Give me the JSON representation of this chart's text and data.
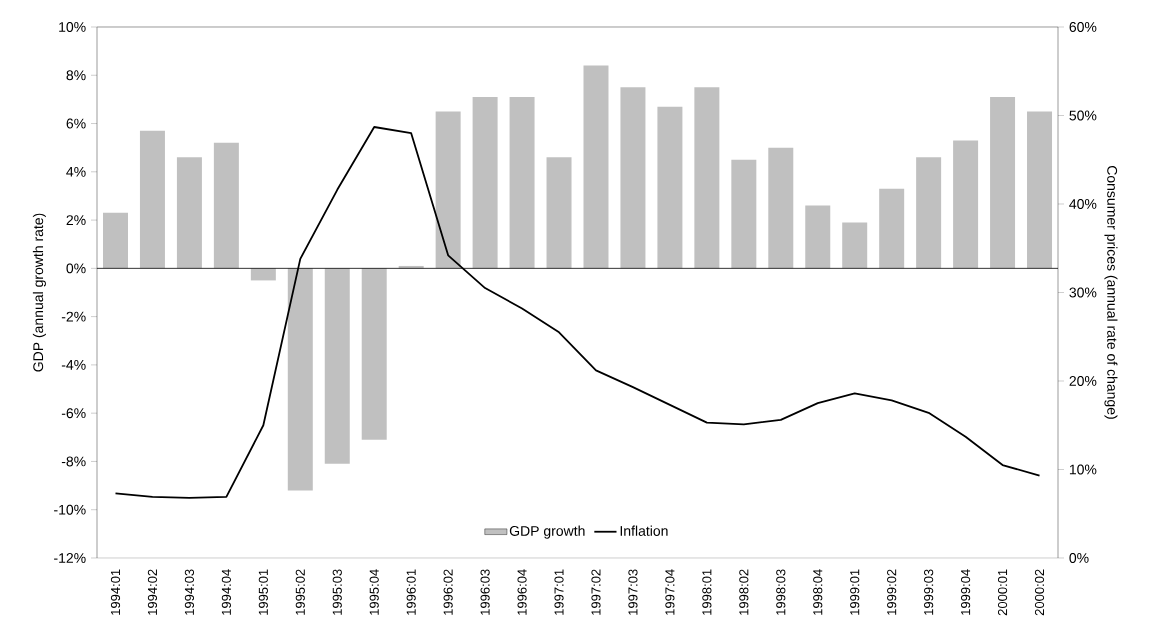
{
  "chart_data": {
    "type": "bar",
    "categories": [
      "1994:01",
      "1994:02",
      "1994:03",
      "1994:04",
      "1995:01",
      "1995:02",
      "1995:03",
      "1995:04",
      "1996:01",
      "1996:02",
      "1996:03",
      "1996:04",
      "1997:01",
      "1997:02",
      "1997:03",
      "1997:04",
      "1998:01",
      "1998:02",
      "1998:03",
      "1998:04",
      "1999:01",
      "1999:02",
      "1999:03",
      "1999:04",
      "2000:01",
      "2000:02"
    ],
    "series": [
      {
        "name": "GDP growth",
        "color": "#c0c0c0",
        "values": [
          2.3,
          5.7,
          4.6,
          5.2,
          -0.5,
          -9.2,
          -8.1,
          -7.1,
          0.1,
          6.5,
          7.1,
          7.1,
          4.6,
          8.4,
          7.5,
          6.7,
          7.5,
          4.5,
          5.0,
          2.6,
          1.9,
          3.3,
          4.6,
          5.3,
          7.1,
          6.5
        ]
      },
      {
        "name": "Inflation",
        "type": "line",
        "axis": "y2",
        "color": "#000000",
        "values": [
          7.3,
          6.9,
          6.8,
          6.9,
          15.0,
          33.8,
          41.6,
          48.7,
          48.0,
          34.2,
          30.5,
          28.2,
          25.5,
          21.2,
          19.3,
          17.3,
          15.3,
          15.1,
          15.6,
          17.5,
          18.6,
          17.8,
          16.4,
          13.7,
          10.5,
          9.3
        ]
      }
    ],
    "ylabel": "GDP (annual growth rate)",
    "y2label": "Consumer prices (annual rate of change)",
    "ylim": [
      -12,
      10
    ],
    "yticks": [
      {
        "value": -12,
        "label": "-12%"
      },
      {
        "value": -10,
        "label": "-10%"
      },
      {
        "value": -8,
        "label": "-8%"
      },
      {
        "value": -6,
        "label": "-6%"
      },
      {
        "value": -4,
        "label": "-4%"
      },
      {
        "value": -2,
        "label": "-2%"
      },
      {
        "value": 0,
        "label": "0%"
      },
      {
        "value": 2,
        "label": "2%"
      },
      {
        "value": 4,
        "label": "4%"
      },
      {
        "value": 6,
        "label": "6%"
      },
      {
        "value": 8,
        "label": "8%"
      },
      {
        "value": 10,
        "label": "10%"
      }
    ],
    "y2lim": [
      0,
      60
    ],
    "y2ticks": [
      {
        "value": 0,
        "label": "0%"
      },
      {
        "value": 10,
        "label": "10%"
      },
      {
        "value": 20,
        "label": "20%"
      },
      {
        "value": 30,
        "label": "30%"
      },
      {
        "value": 40,
        "label": "40%"
      },
      {
        "value": 50,
        "label": "50%"
      },
      {
        "value": 60,
        "label": "60%"
      }
    ],
    "legend": "bottom"
  }
}
